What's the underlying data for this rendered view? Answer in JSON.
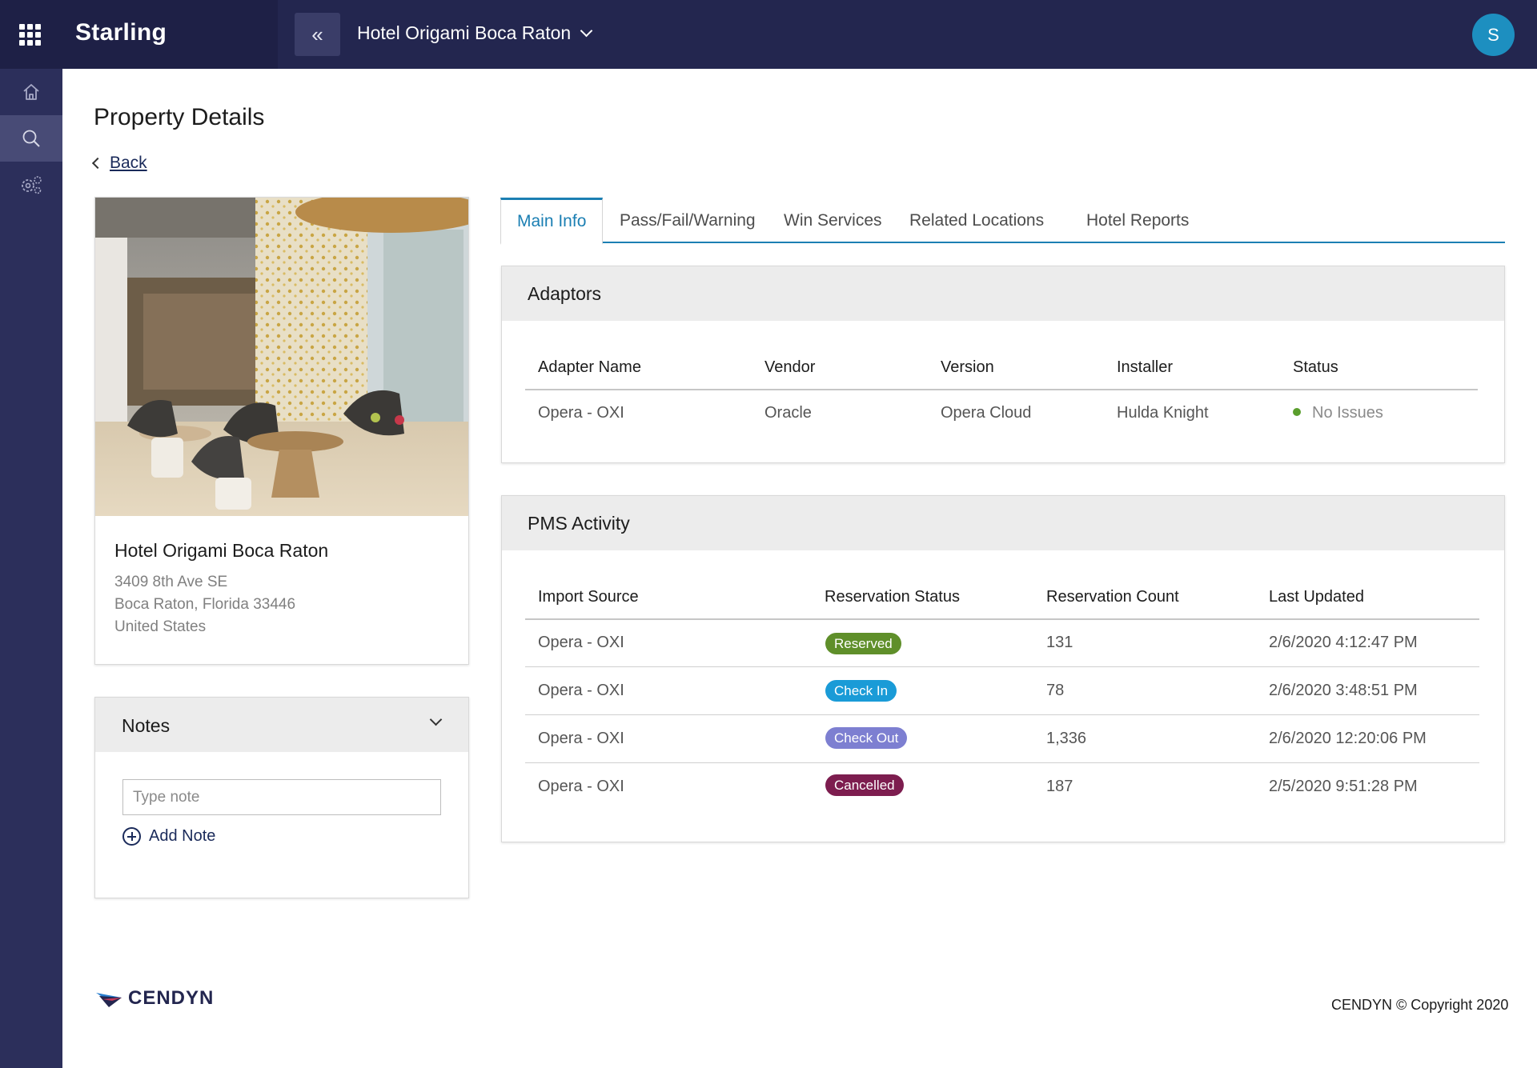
{
  "app": {
    "name": "Starling"
  },
  "header": {
    "collapse_glyph": "«",
    "property_name": "Hotel Origami Boca Raton",
    "avatar_initial": "S"
  },
  "rail": {
    "items": [
      "home-icon",
      "search-icon",
      "settings-icon"
    ],
    "active": "search-icon"
  },
  "page": {
    "title": "Property Details",
    "back_label": "Back"
  },
  "property": {
    "name": "Hotel Origami Boca Raton",
    "address_line1": "3409 8th Ave SE",
    "address_line2": "Boca Raton, Florida 33446",
    "address_line3": "United States"
  },
  "notes": {
    "title": "Notes",
    "placeholder": "Type note",
    "add_label": "Add Note"
  },
  "tabs": [
    {
      "label": "Main Info"
    },
    {
      "label": "Pass/Fail/Warning"
    },
    {
      "label": "Win Services"
    },
    {
      "label": "Related Locations"
    },
    {
      "label": "Hotel Reports"
    }
  ],
  "adaptors": {
    "title": "Adaptors",
    "columns": [
      "Adapter Name",
      "Vendor",
      "Version",
      "Installer",
      "Status"
    ],
    "rows": [
      {
        "name": "Opera - OXI",
        "vendor": "Oracle",
        "version": "Opera Cloud",
        "installer": "Hulda Knight",
        "status": "No Issues"
      }
    ]
  },
  "pms": {
    "title": "PMS Activity",
    "columns": [
      "Import Source",
      "Reservation Status",
      "Reservation Count",
      "Last Updated"
    ],
    "rows": [
      {
        "source": "Opera - OXI",
        "status": "Reserved",
        "count": "131",
        "updated": "2/6/2020 4:12:47 PM"
      },
      {
        "source": "Opera - OXI",
        "status": "Check In",
        "count": "78",
        "updated": "2/6/2020 3:48:51 PM"
      },
      {
        "source": "Opera - OXI",
        "status": "Check Out",
        "count": "1,336",
        "updated": "2/6/2020 12:20:06 PM"
      },
      {
        "source": "Opera - OXI",
        "status": "Cancelled",
        "count": "187",
        "updated": "2/5/2020 9:51:28 PM"
      }
    ]
  },
  "colors": {
    "topbar": "#23264f",
    "accent": "#1b7fb3",
    "reserved": "#5f8f2a",
    "check_in": "#1a9bd7",
    "check_out": "#7d7fd1",
    "cancelled": "#7d1d4f",
    "status_ok": "#5a9e2d"
  },
  "footer": {
    "logo_text": "CENDYN",
    "copyright": "CENDYN © Copyright 2020"
  }
}
